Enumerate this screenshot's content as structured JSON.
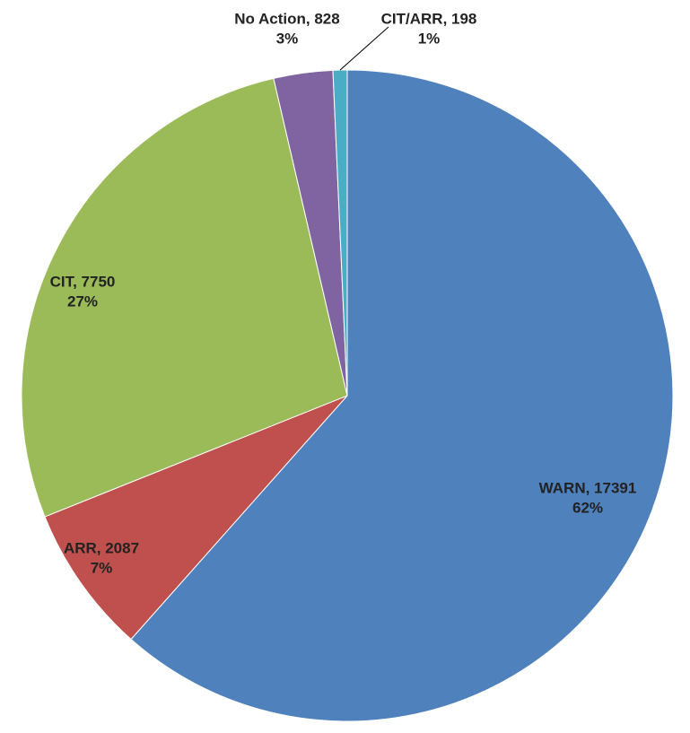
{
  "chart_data": {
    "type": "pie",
    "categories": [
      "WARN",
      "ARR",
      "CIT",
      "No Action",
      "CIT/ARR"
    ],
    "values": [
      17391,
      2087,
      7750,
      828,
      198
    ],
    "value_labels": [
      "WARN, 17391",
      "ARR, 2087",
      "CIT, 7750",
      "No Action, 828",
      "CIT/ARR, 198"
    ],
    "percent_labels": [
      "62%",
      "7%",
      "27%",
      "3%",
      "1%"
    ],
    "colors": [
      "#4f81bd",
      "#c0504d",
      "#9bbb59",
      "#8064a2",
      "#4bacc6"
    ]
  }
}
